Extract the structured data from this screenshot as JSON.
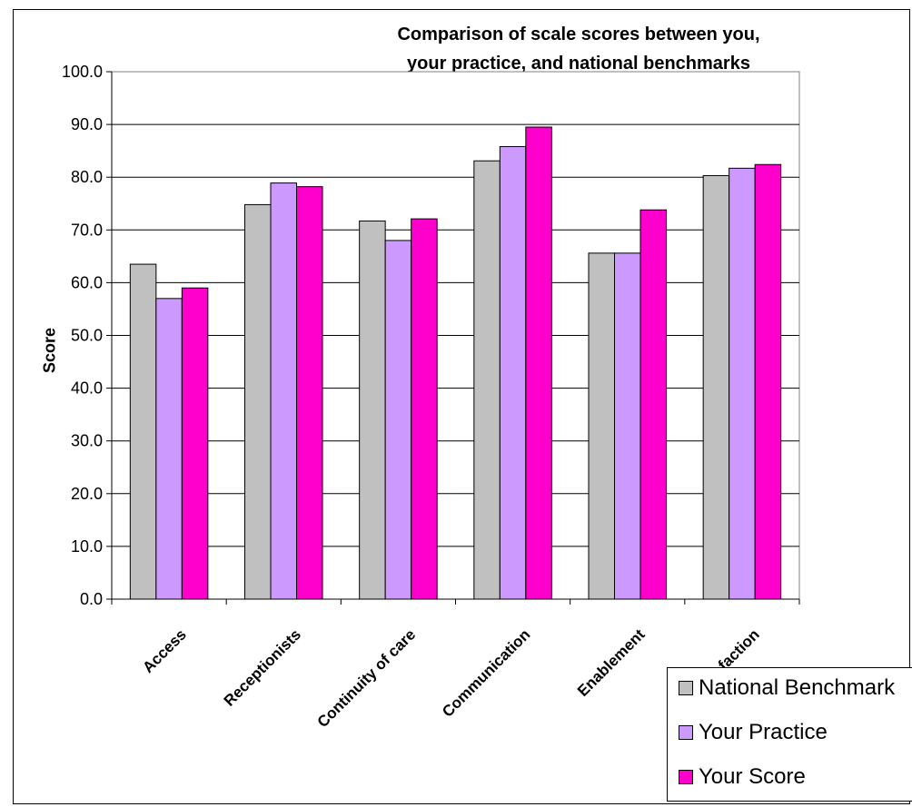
{
  "chart_data": {
    "type": "bar",
    "title": "Comparison of scale scores between you,",
    "subtitle": "your practice, and national benchmarks",
    "xlabel": "",
    "ylabel": "Score",
    "ylim": [
      0,
      100
    ],
    "yticks": [
      "0.0",
      "10.0",
      "20.0",
      "30.0",
      "40.0",
      "50.0",
      "60.0",
      "70.0",
      "80.0",
      "90.0",
      "100.0"
    ],
    "grid": true,
    "legend_position": "bottom-right",
    "categories": [
      "Access",
      "Receptionists",
      "Continuity of care",
      "Communication",
      "Enablement",
      "Satisfaction"
    ],
    "series": [
      {
        "name": "National Benchmark",
        "color": "#c0c0c0",
        "values": [
          63.5,
          74.8,
          71.7,
          83.1,
          65.6,
          80.3
        ]
      },
      {
        "name": "Your Practice",
        "color": "#cc99ff",
        "values": [
          57.0,
          78.9,
          68.0,
          85.8,
          65.6,
          81.7
        ]
      },
      {
        "name": "Your Score",
        "color": "#ff00cc",
        "values": [
          59.0,
          78.2,
          72.1,
          89.5,
          73.8,
          82.4
        ]
      }
    ]
  }
}
